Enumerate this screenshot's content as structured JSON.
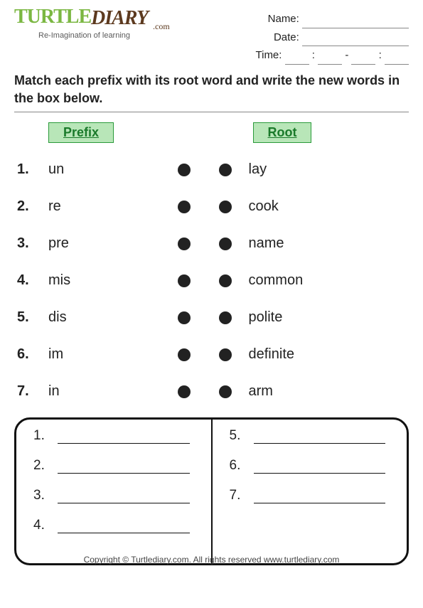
{
  "logo": {
    "word1": "TURTLE",
    "word2": "DIARY",
    "suffix": ".com",
    "tagline": "Re-Imagination of learning"
  },
  "meta": {
    "name_label": "Name:",
    "date_label": "Date:",
    "time_label": "Time:",
    "time_sep1": ":",
    "time_sep2": "-",
    "time_sep3": ":"
  },
  "instructions": "Match each prefix with its root word and write the new words in the box below.",
  "headers": {
    "left": "Prefix",
    "right": "Root"
  },
  "colors": {
    "chip_bg": "#b8e6b8",
    "chip_border": "#2a9a3a",
    "chip_text": "#1a7a2a",
    "dot": "#222222"
  },
  "left_items": [
    {
      "n": "1.",
      "w": "un"
    },
    {
      "n": "2.",
      "w": "re"
    },
    {
      "n": "3.",
      "w": "pre"
    },
    {
      "n": "4.",
      "w": "mis"
    },
    {
      "n": "5.",
      "w": "dis"
    },
    {
      "n": "6.",
      "w": "im"
    },
    {
      "n": "7.",
      "w": "in"
    }
  ],
  "right_items": [
    {
      "w": "lay"
    },
    {
      "w": "cook"
    },
    {
      "w": "name"
    },
    {
      "w": "common"
    },
    {
      "w": "polite"
    },
    {
      "w": "definite"
    },
    {
      "w": "arm"
    }
  ],
  "answer_left": [
    "1.",
    "2.",
    "3.",
    "4."
  ],
  "answer_right": [
    "5.",
    "6.",
    "7."
  ],
  "footer": "Copyright © Turtlediary.com. All rights reserved  www.turtlediary.com"
}
